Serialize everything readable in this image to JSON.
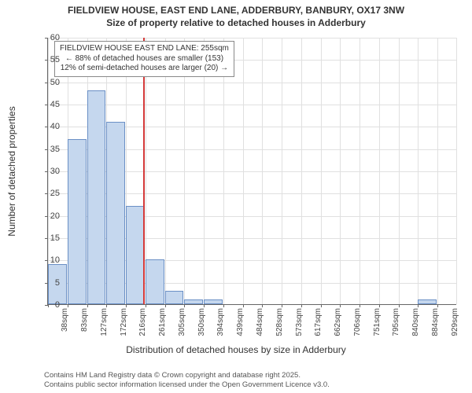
{
  "title_line1": "FIELDVIEW HOUSE, EAST END LANE, ADDERBURY, BANBURY, OX17 3NW",
  "title_line2": "Size of property relative to detached houses in Adderbury",
  "xlabel": "Distribution of detached houses by size in Adderbury",
  "ylabel": "Number of detached properties",
  "footer_line1": "Contains HM Land Registry data © Crown copyright and database right 2025.",
  "footer_line2": "Contains public sector information licensed under the Open Government Licence v3.0.",
  "chart": {
    "type": "histogram",
    "bar_fill": "#c5d7ee",
    "bar_stroke": "#6a8fc5",
    "grid_color": "#e0e0e0",
    "axis_color": "#666666",
    "background_color": "#ffffff",
    "ylim": [
      0,
      60
    ],
    "ytick_step": 5,
    "categories": [
      "38sqm",
      "83sqm",
      "127sqm",
      "172sqm",
      "216sqm",
      "261sqm",
      "305sqm",
      "350sqm",
      "394sqm",
      "439sqm",
      "484sqm",
      "528sqm",
      "573sqm",
      "617sqm",
      "662sqm",
      "706sqm",
      "751sqm",
      "795sqm",
      "840sqm",
      "884sqm",
      "929sqm"
    ],
    "values": [
      9,
      37,
      48,
      41,
      22,
      10,
      3,
      1,
      1,
      0,
      0,
      0,
      0,
      0,
      0,
      0,
      0,
      0,
      0,
      1
    ],
    "bar_width": 1.0,
    "vline_index": 4.9,
    "vline_color": "#d43a3a",
    "annotation": {
      "line1": "FIELDVIEW HOUSE EAST END LANE: 255sqm",
      "line2": "← 88% of detached houses are smaller (153)",
      "line3": "12% of semi-detached houses are larger (20) →"
    },
    "title_fontsize": 12,
    "label_fontsize": 12,
    "tick_fontsize": 11
  }
}
